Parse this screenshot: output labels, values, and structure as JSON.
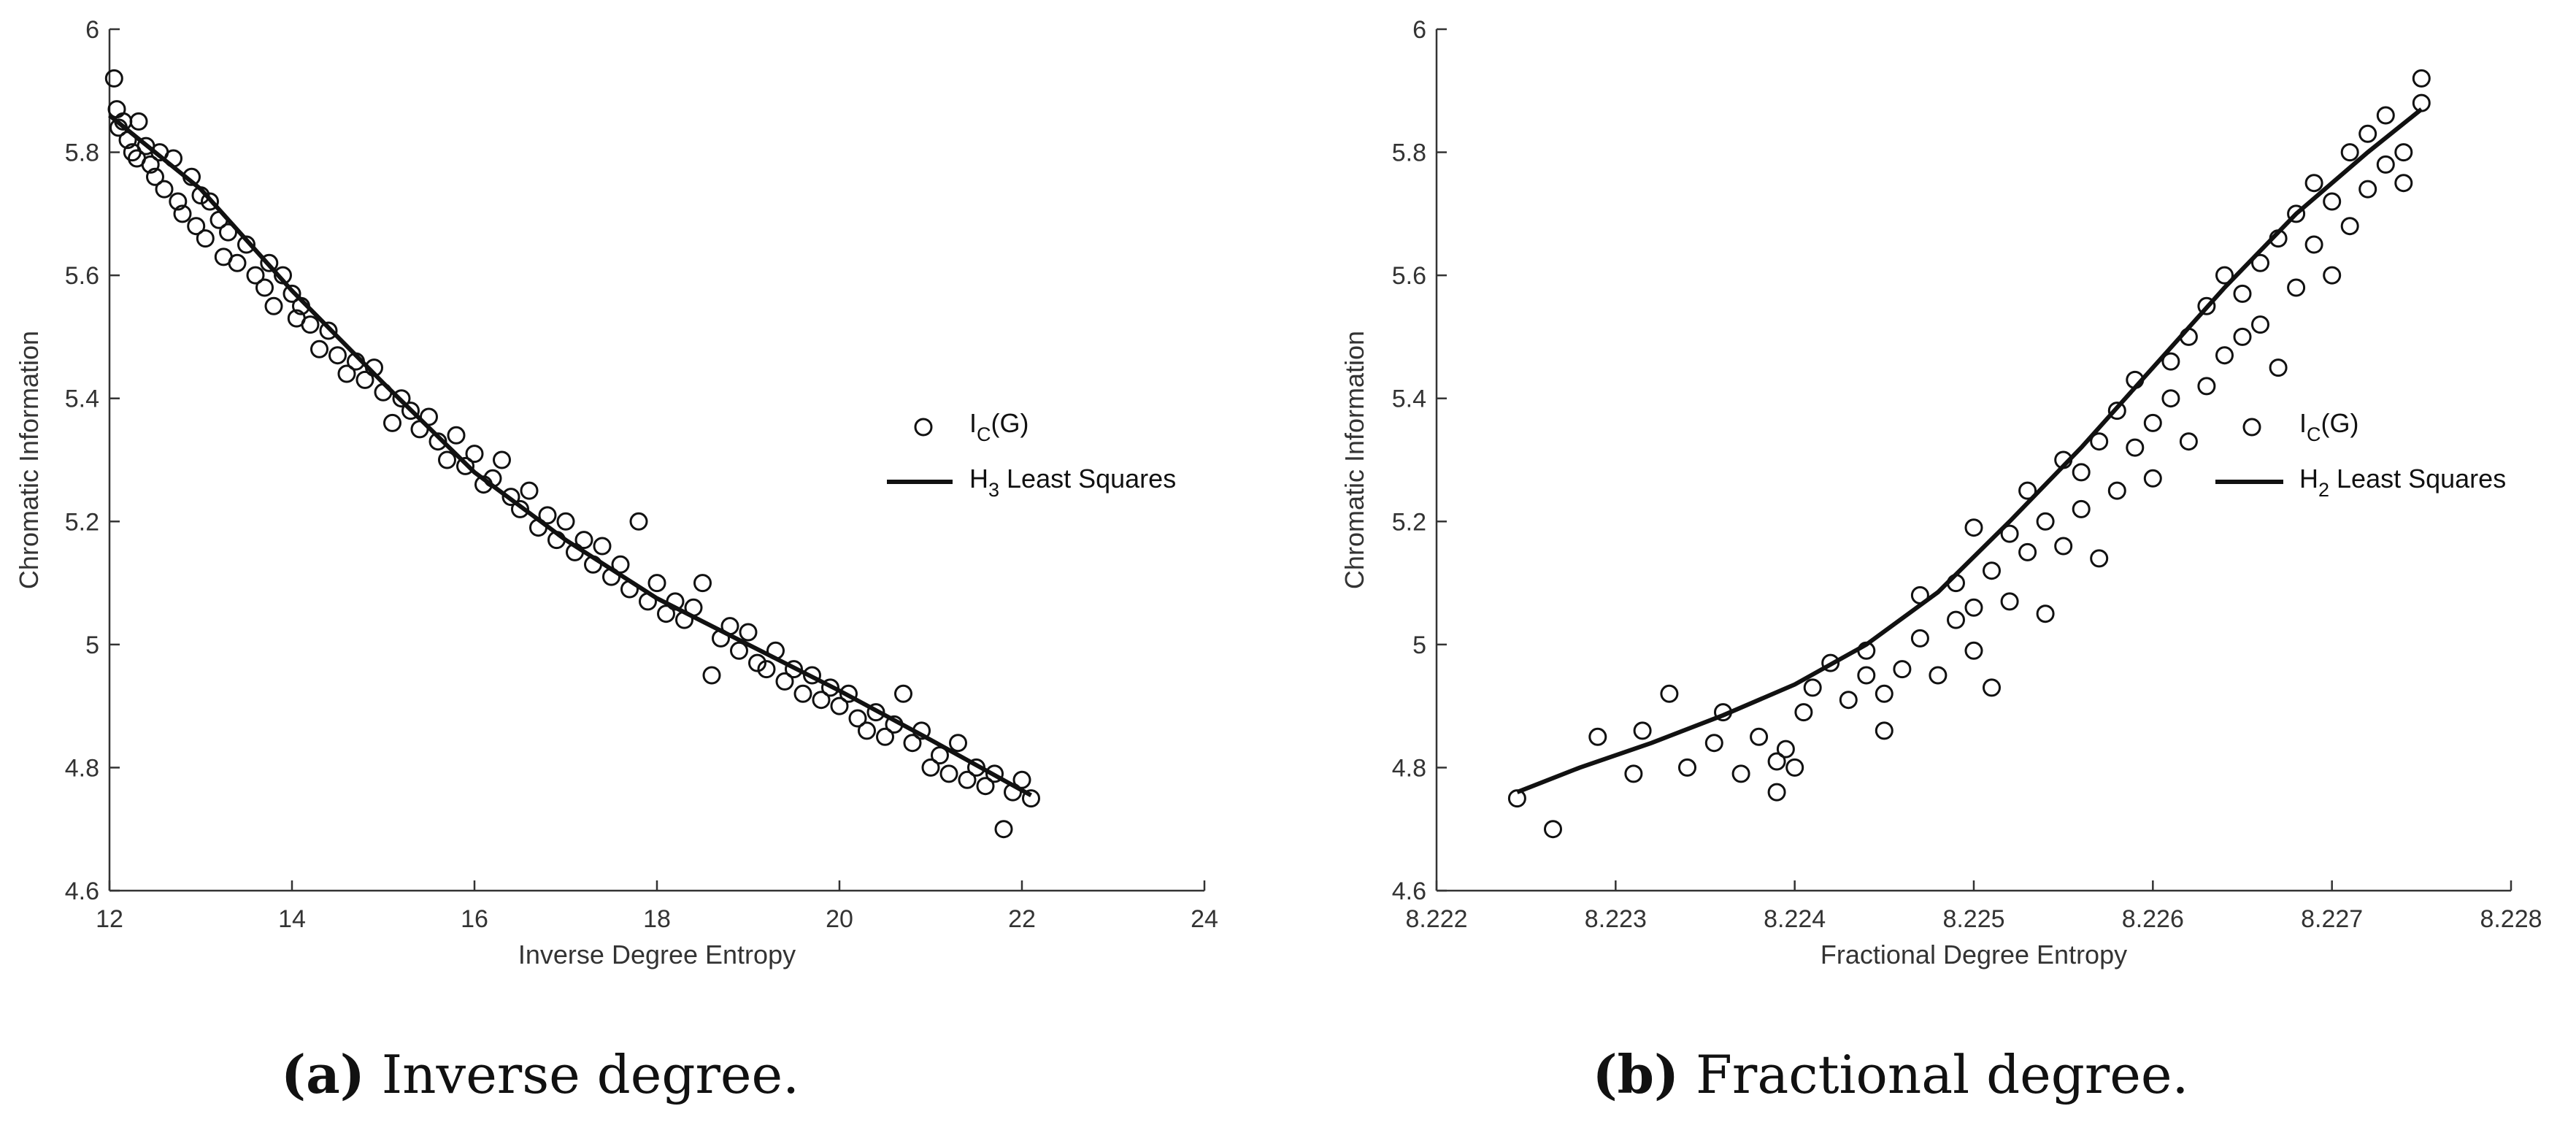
{
  "captions": [
    {
      "letter": "(a)",
      "text": " Inverse degree."
    },
    {
      "letter": "(b)",
      "text": " Fractional degree."
    }
  ],
  "chart_data": [
    {
      "type": "scatter",
      "panel": "a",
      "xlabel": "Inverse Degree Entropy",
      "ylabel": "Chromatic Information",
      "xlim": [
        12,
        24
      ],
      "ylim": [
        4.6,
        6
      ],
      "xticks": [
        12,
        14,
        16,
        18,
        20,
        22,
        24
      ],
      "yticks": [
        4.6,
        4.8,
        5,
        5.2,
        5.4,
        5.6,
        5.8,
        6
      ],
      "xtick_labels": [
        "12",
        "14",
        "16",
        "18",
        "20",
        "22",
        "24"
      ],
      "ytick_labels": [
        "4.6",
        "4.8",
        "5",
        "5.2",
        "5.4",
        "5.6",
        "5.8",
        "6"
      ],
      "legend": {
        "position": "right",
        "entries": [
          {
            "marker": "circle",
            "main": "I",
            "sub": "C",
            "rest": "(G)"
          },
          {
            "marker": "line",
            "main": "H",
            "sub": "3",
            "rest": " Least Squares"
          }
        ]
      },
      "series": [
        {
          "name": "I_C(G)",
          "kind": "points",
          "points": [
            [
              12.05,
              5.92
            ],
            [
              12.08,
              5.87
            ],
            [
              12.1,
              5.84
            ],
            [
              12.15,
              5.85
            ],
            [
              12.2,
              5.82
            ],
            [
              12.25,
              5.8
            ],
            [
              12.3,
              5.79
            ],
            [
              12.32,
              5.85
            ],
            [
              12.4,
              5.81
            ],
            [
              12.45,
              5.78
            ],
            [
              12.5,
              5.76
            ],
            [
              12.55,
              5.8
            ],
            [
              12.6,
              5.74
            ],
            [
              12.7,
              5.79
            ],
            [
              12.75,
              5.72
            ],
            [
              12.8,
              5.7
            ],
            [
              12.9,
              5.76
            ],
            [
              12.95,
              5.68
            ],
            [
              13.0,
              5.73
            ],
            [
              13.05,
              5.66
            ],
            [
              13.1,
              5.72
            ],
            [
              13.2,
              5.69
            ],
            [
              13.25,
              5.63
            ],
            [
              13.3,
              5.67
            ],
            [
              13.4,
              5.62
            ],
            [
              13.5,
              5.65
            ],
            [
              13.6,
              5.6
            ],
            [
              13.7,
              5.58
            ],
            [
              13.75,
              5.62
            ],
            [
              13.8,
              5.55
            ],
            [
              13.9,
              5.6
            ],
            [
              14.0,
              5.57
            ],
            [
              14.05,
              5.53
            ],
            [
              14.1,
              5.55
            ],
            [
              14.2,
              5.52
            ],
            [
              14.3,
              5.48
            ],
            [
              14.4,
              5.51
            ],
            [
              14.5,
              5.47
            ],
            [
              14.6,
              5.44
            ],
            [
              14.7,
              5.46
            ],
            [
              14.8,
              5.43
            ],
            [
              14.9,
              5.45
            ],
            [
              15.0,
              5.41
            ],
            [
              15.1,
              5.36
            ],
            [
              15.2,
              5.4
            ],
            [
              15.3,
              5.38
            ],
            [
              15.4,
              5.35
            ],
            [
              15.5,
              5.37
            ],
            [
              15.6,
              5.33
            ],
            [
              15.7,
              5.3
            ],
            [
              15.8,
              5.34
            ],
            [
              15.9,
              5.29
            ],
            [
              16.0,
              5.31
            ],
            [
              16.1,
              5.26
            ],
            [
              16.2,
              5.27
            ],
            [
              16.3,
              5.3
            ],
            [
              16.4,
              5.24
            ],
            [
              16.5,
              5.22
            ],
            [
              16.6,
              5.25
            ],
            [
              16.7,
              5.19
            ],
            [
              16.8,
              5.21
            ],
            [
              16.9,
              5.17
            ],
            [
              17.0,
              5.2
            ],
            [
              17.1,
              5.15
            ],
            [
              17.2,
              5.17
            ],
            [
              17.3,
              5.13
            ],
            [
              17.4,
              5.16
            ],
            [
              17.5,
              5.11
            ],
            [
              17.6,
              5.13
            ],
            [
              17.7,
              5.09
            ],
            [
              17.8,
              5.2
            ],
            [
              17.9,
              5.07
            ],
            [
              18.0,
              5.1
            ],
            [
              18.1,
              5.05
            ],
            [
              18.2,
              5.07
            ],
            [
              18.3,
              5.04
            ],
            [
              18.4,
              5.06
            ],
            [
              18.5,
              5.1
            ],
            [
              18.6,
              4.95
            ],
            [
              18.7,
              5.01
            ],
            [
              18.8,
              5.03
            ],
            [
              18.9,
              4.99
            ],
            [
              19.0,
              5.02
            ],
            [
              19.1,
              4.97
            ],
            [
              19.2,
              4.96
            ],
            [
              19.3,
              4.99
            ],
            [
              19.4,
              4.94
            ],
            [
              19.5,
              4.96
            ],
            [
              19.6,
              4.92
            ],
            [
              19.7,
              4.95
            ],
            [
              19.8,
              4.91
            ],
            [
              19.9,
              4.93
            ],
            [
              20.0,
              4.9
            ],
            [
              20.1,
              4.92
            ],
            [
              20.2,
              4.88
            ],
            [
              20.3,
              4.86
            ],
            [
              20.4,
              4.89
            ],
            [
              20.5,
              4.85
            ],
            [
              20.6,
              4.87
            ],
            [
              20.7,
              4.92
            ],
            [
              20.8,
              4.84
            ],
            [
              20.9,
              4.86
            ],
            [
              21.0,
              4.8
            ],
            [
              21.1,
              4.82
            ],
            [
              21.2,
              4.79
            ],
            [
              21.3,
              4.84
            ],
            [
              21.4,
              4.78
            ],
            [
              21.5,
              4.8
            ],
            [
              21.6,
              4.77
            ],
            [
              21.7,
              4.79
            ],
            [
              21.8,
              4.7
            ],
            [
              21.9,
              4.76
            ],
            [
              22.0,
              4.78
            ],
            [
              22.1,
              4.75
            ]
          ]
        },
        {
          "name": "H_3 Least Squares",
          "kind": "line",
          "points": [
            [
              12.0,
              5.86
            ],
            [
              13.0,
              5.74
            ],
            [
              14.0,
              5.575
            ],
            [
              15.0,
              5.425
            ],
            [
              16.0,
              5.28
            ],
            [
              17.0,
              5.17
            ],
            [
              18.0,
              5.075
            ],
            [
              19.0,
              5.0
            ],
            [
              20.0,
              4.925
            ],
            [
              21.0,
              4.845
            ],
            [
              22.1,
              4.755
            ]
          ]
        }
      ]
    },
    {
      "type": "scatter",
      "panel": "b",
      "xlabel": "Fractional Degree Entropy",
      "ylabel": "Chromatic Information",
      "xlim": [
        8.222,
        8.228
      ],
      "ylim": [
        4.6,
        6
      ],
      "xticks": [
        8.222,
        8.223,
        8.224,
        8.225,
        8.226,
        8.227,
        8.228
      ],
      "yticks": [
        4.6,
        4.8,
        5,
        5.2,
        5.4,
        5.6,
        5.8,
        6
      ],
      "xtick_labels": [
        "8.222",
        "8.223",
        "8.224",
        "8.225",
        "8.226",
        "8.227",
        "8.228"
      ],
      "ytick_labels": [
        "4.6",
        "4.8",
        "5",
        "5.2",
        "5.4",
        "5.6",
        "5.8",
        "6"
      ],
      "legend": {
        "position": "right",
        "entries": [
          {
            "marker": "circle",
            "main": "I",
            "sub": "C",
            "rest": "(G)"
          },
          {
            "marker": "line",
            "main": "H",
            "sub": "2",
            "rest": " Least Squares"
          }
        ]
      },
      "series": [
        {
          "name": "I_C(G)",
          "kind": "points",
          "points": [
            [
              8.22245,
              4.75
            ],
            [
              8.22265,
              4.7
            ],
            [
              8.2229,
              4.85
            ],
            [
              8.2231,
              4.79
            ],
            [
              8.22315,
              4.86
            ],
            [
              8.2233,
              4.92
            ],
            [
              8.2234,
              4.8
            ],
            [
              8.22355,
              4.84
            ],
            [
              8.2236,
              4.89
            ],
            [
              8.2237,
              4.79
            ],
            [
              8.2238,
              4.85
            ],
            [
              8.2239,
              4.76
            ],
            [
              8.2239,
              4.81
            ],
            [
              8.22395,
              4.83
            ],
            [
              8.224,
              4.8
            ],
            [
              8.22405,
              4.89
            ],
            [
              8.2241,
              4.93
            ],
            [
              8.2242,
              4.97
            ],
            [
              8.2243,
              4.91
            ],
            [
              8.2244,
              4.95
            ],
            [
              8.2244,
              4.99
            ],
            [
              8.2245,
              4.92
            ],
            [
              8.2245,
              4.86
            ],
            [
              8.2246,
              4.96
            ],
            [
              8.2247,
              5.01
            ],
            [
              8.2247,
              5.08
            ],
            [
              8.2248,
              4.95
            ],
            [
              8.2249,
              5.04
            ],
            [
              8.2249,
              5.1
            ],
            [
              8.225,
              4.99
            ],
            [
              8.225,
              5.06
            ],
            [
              8.225,
              5.19
            ],
            [
              8.2251,
              4.93
            ],
            [
              8.2251,
              5.12
            ],
            [
              8.2252,
              5.07
            ],
            [
              8.2252,
              5.18
            ],
            [
              8.2253,
              5.15
            ],
            [
              8.2253,
              5.25
            ],
            [
              8.2254,
              5.05
            ],
            [
              8.2254,
              5.2
            ],
            [
              8.2255,
              5.16
            ],
            [
              8.2255,
              5.3
            ],
            [
              8.2256,
              5.22
            ],
            [
              8.2256,
              5.28
            ],
            [
              8.2257,
              5.14
            ],
            [
              8.2257,
              5.33
            ],
            [
              8.2258,
              5.25
            ],
            [
              8.2258,
              5.38
            ],
            [
              8.2259,
              5.32
            ],
            [
              8.2259,
              5.43
            ],
            [
              8.226,
              5.27
            ],
            [
              8.226,
              5.36
            ],
            [
              8.2261,
              5.4
            ],
            [
              8.2261,
              5.46
            ],
            [
              8.2262,
              5.33
            ],
            [
              8.2262,
              5.5
            ],
            [
              8.2263,
              5.42
            ],
            [
              8.2263,
              5.55
            ],
            [
              8.2264,
              5.47
            ],
            [
              8.2264,
              5.6
            ],
            [
              8.2265,
              5.5
            ],
            [
              8.2265,
              5.57
            ],
            [
              8.2266,
              5.62
            ],
            [
              8.2266,
              5.52
            ],
            [
              8.2267,
              5.45
            ],
            [
              8.2267,
              5.66
            ],
            [
              8.2268,
              5.58
            ],
            [
              8.2268,
              5.7
            ],
            [
              8.2269,
              5.65
            ],
            [
              8.2269,
              5.75
            ],
            [
              8.227,
              5.6
            ],
            [
              8.227,
              5.72
            ],
            [
              8.2271,
              5.8
            ],
            [
              8.2271,
              5.68
            ],
            [
              8.2272,
              5.74
            ],
            [
              8.2272,
              5.83
            ],
            [
              8.2273,
              5.78
            ],
            [
              8.2273,
              5.86
            ],
            [
              8.2274,
              5.8
            ],
            [
              8.2274,
              5.75
            ],
            [
              8.2275,
              5.88
            ],
            [
              8.2275,
              5.92
            ]
          ]
        },
        {
          "name": "H_2 Least Squares",
          "kind": "line",
          "points": [
            [
              8.22245,
              4.76
            ],
            [
              8.2228,
              4.8
            ],
            [
              8.2232,
              4.84
            ],
            [
              8.2236,
              4.885
            ],
            [
              8.224,
              4.935
            ],
            [
              8.2244,
              5.0
            ],
            [
              8.2248,
              5.085
            ],
            [
              8.2252,
              5.2
            ],
            [
              8.2256,
              5.32
            ],
            [
              8.226,
              5.45
            ],
            [
              8.2264,
              5.58
            ],
            [
              8.2268,
              5.7
            ],
            [
              8.2272,
              5.8
            ],
            [
              8.2275,
              5.87
            ]
          ]
        }
      ]
    }
  ]
}
